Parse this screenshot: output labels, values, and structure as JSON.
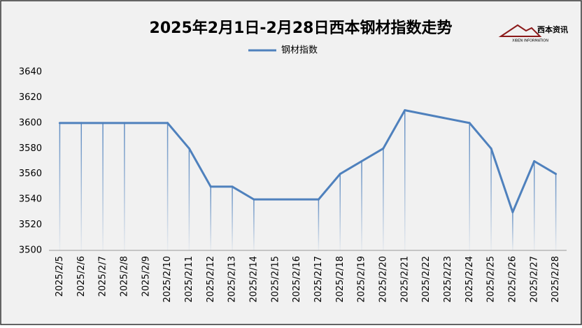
{
  "chart_data": {
    "type": "line",
    "title": "2025年2月1日-2月28日西本钢材指数走势",
    "logo": {
      "text": "西本资讯",
      "subtitle": "XIBEN INFORMATION"
    },
    "categories": [
      "2025/2/5",
      "2025/2/6",
      "2025/2/7",
      "2025/2/8",
      "2025/2/9",
      "2025/2/10",
      "2025/2/11",
      "2025/2/12",
      "2025/2/13",
      "2025/2/14",
      "2025/2/15",
      "2025/2/16",
      "2025/2/17",
      "2025/2/18",
      "2025/2/19",
      "2025/2/20",
      "2025/2/21",
      "2025/2/22",
      "2025/2/23",
      "2025/2/24",
      "2025/2/25",
      "2025/2/26",
      "2025/2/27",
      "2025/2/28"
    ],
    "series": [
      {
        "name": "钢材指数",
        "color": "#4f81bd",
        "values": [
          3600,
          3600,
          3600,
          3600,
          null,
          3600,
          3580,
          3550,
          3550,
          3540,
          null,
          null,
          3540,
          3560,
          3570,
          3580,
          3610,
          null,
          null,
          3600,
          3580,
          3530,
          3570,
          3560
        ]
      }
    ],
    "ylim": [
      3500,
      3640
    ],
    "yticks": [
      3500,
      3520,
      3540,
      3560,
      3580,
      3600,
      3620,
      3640
    ],
    "span_gaps": true,
    "drop_lines": true,
    "grid": false,
    "legend": "top"
  }
}
